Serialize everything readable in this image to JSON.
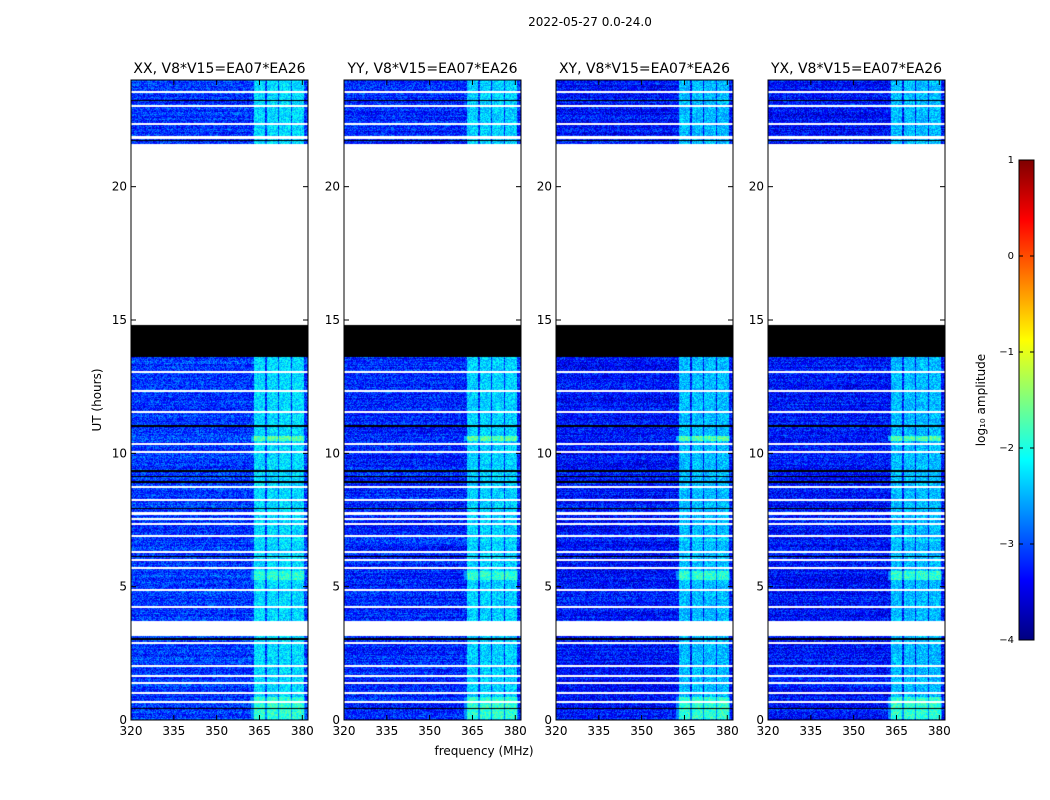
{
  "chart_data": {
    "type": "heatmap",
    "title": "2022-05-27 0.0-24.0",
    "xlabel": "frequency (MHz)",
    "ylabel": "UT (hours)",
    "xlim": [
      320,
      382
    ],
    "ylim": [
      0,
      24
    ],
    "x_ticks": [
      320,
      335,
      350,
      365,
      380
    ],
    "y_ticks": [
      0,
      5,
      10,
      15,
      20
    ],
    "colorbar": {
      "label": "log₁₀ amplitude",
      "range": [
        -4,
        1
      ],
      "ticks": [
        "−4",
        "−3",
        "−2",
        "−1",
        "0",
        "1"
      ],
      "colormap": [
        "#00007f",
        "#0000ff",
        "#007fff",
        "#00ffff",
        "#7fff7f",
        "#ffff00",
        "#ff7f00",
        "#ff0000",
        "#7f0000"
      ]
    },
    "background_level": -3.3,
    "data_gap_hours": [
      [
        0.65,
        0.72
      ],
      [
        0.98,
        1.05
      ],
      [
        1.35,
        1.42
      ],
      [
        1.6,
        1.67
      ],
      [
        2.0,
        2.07
      ],
      [
        2.85,
        2.92
      ],
      [
        3.15,
        3.7
      ],
      [
        4.2,
        4.27
      ],
      [
        4.85,
        4.92
      ],
      [
        5.68,
        5.75
      ],
      [
        5.95,
        6.02
      ],
      [
        6.25,
        6.32
      ],
      [
        6.85,
        6.92
      ],
      [
        7.3,
        7.37
      ],
      [
        7.5,
        7.57
      ],
      [
        7.7,
        7.8
      ],
      [
        8.2,
        8.27
      ],
      [
        8.7,
        8.77
      ],
      [
        10.0,
        10.07
      ],
      [
        10.3,
        10.37
      ],
      [
        11.5,
        11.57
      ],
      [
        12.3,
        12.37
      ],
      [
        13.0,
        13.07
      ],
      [
        14.8,
        21.6
      ],
      [
        21.8,
        21.9
      ],
      [
        22.3,
        22.37
      ],
      [
        23.0,
        23.07
      ],
      [
        23.5,
        23.57
      ]
    ],
    "flagged_hours": [
      [
        13.6,
        14.85
      ],
      [
        11.0,
        11.06
      ],
      [
        9.3,
        9.36
      ],
      [
        9.1,
        9.16
      ],
      [
        8.9,
        8.96
      ],
      [
        7.9,
        7.96
      ],
      [
        6.1,
        6.16
      ],
      [
        3.0,
        3.06
      ],
      [
        0.4,
        0.46
      ],
      [
        23.2,
        23.26
      ],
      [
        21.7,
        21.76
      ]
    ],
    "rfi_band_mhz": [
      362,
      381
    ],
    "rfi_channels_mhz": [
      [
        363,
        367
      ],
      [
        367.5,
        371.5
      ],
      [
        372,
        376
      ],
      [
        376.5,
        380.5
      ]
    ],
    "rfi_bursts": [
      {
        "t0": 0.05,
        "t1": 0.85,
        "level": -1.9
      },
      {
        "t0": 5.25,
        "t1": 5.6,
        "level": -1.9
      },
      {
        "t0": 10.45,
        "t1": 10.65,
        "level": -1.7
      },
      {
        "t0": 6.7,
        "t1": 6.8,
        "level": -2.2
      }
    ],
    "panels": [
      {
        "name": "XX",
        "title": "XX, V8*V15=EA07*EA26",
        "bg_offset": 0.2,
        "rfi_level": -2.3
      },
      {
        "name": "YY",
        "title": "YY, V8*V15=EA07*EA26",
        "bg_offset": 0.1,
        "rfi_level": -2.35
      },
      {
        "name": "XY",
        "title": "XY, V8*V15=EA07*EA26",
        "bg_offset": 0.0,
        "rfi_level": -2.45
      },
      {
        "name": "YX",
        "title": "YX, V8*V15=EA07*EA26",
        "bg_offset": 0.0,
        "rfi_level": -2.45
      }
    ]
  }
}
